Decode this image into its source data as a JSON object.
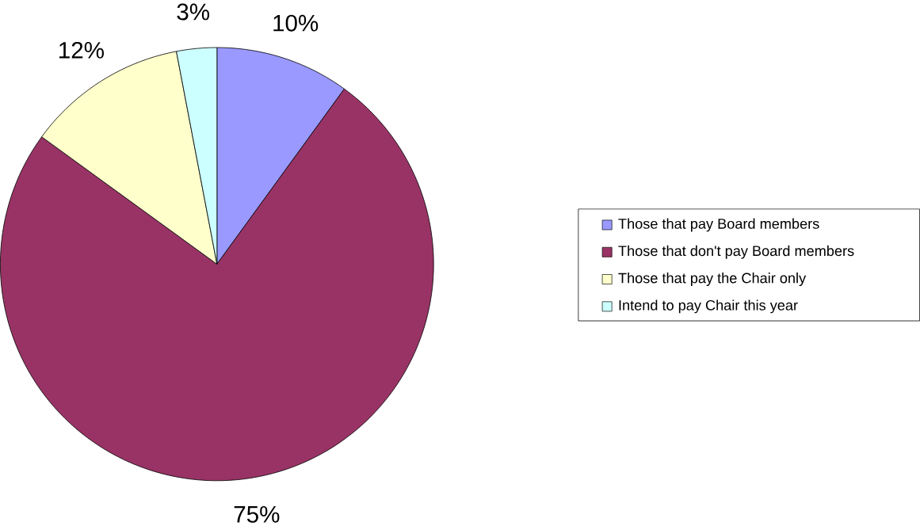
{
  "chart_data": {
    "type": "pie",
    "categories": [
      "Those that pay Board members",
      "Those that don't pay Board members",
      "Those that pay the Chair only",
      "Intend to pay Chair this year"
    ],
    "values": [
      10,
      75,
      12,
      3
    ],
    "colors": [
      "#9999ff",
      "#993366",
      "#ffffcc",
      "#ccffff"
    ],
    "value_labels": [
      "10%",
      "75%",
      "12%",
      "3%"
    ],
    "legend": "right"
  }
}
